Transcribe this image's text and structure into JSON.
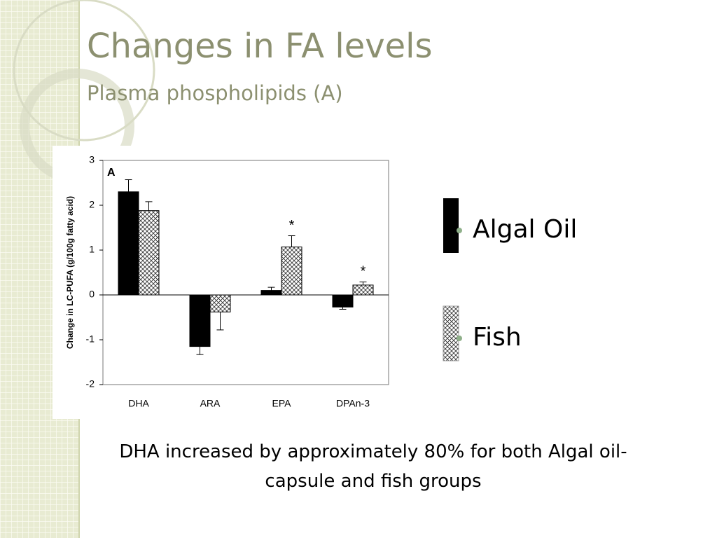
{
  "slide": {
    "title": "Changes in FA levels",
    "subtitle": "Plasma phospholipids (A)",
    "caption": "DHA increased by approximately 80% for both Algal oil-capsule and fish groups"
  },
  "chart_data": {
    "type": "bar",
    "panel_label": "A",
    "y_label": "Change in LC-PUFA (g/100g fatty acid)",
    "categories": [
      "DHA",
      "ARA",
      "EPA",
      "DPAn-3"
    ],
    "series": [
      {
        "name": "Algal Oil",
        "color": "#000000",
        "values": [
          2.3,
          -1.15,
          0.1,
          -0.27
        ],
        "errors": [
          0.27,
          0.18,
          0.07,
          0.05
        ]
      },
      {
        "name": "Fish",
        "color": "#000000",
        "pattern": "crosshatch",
        "values": [
          1.88,
          -0.38,
          1.07,
          0.22
        ],
        "errors": [
          0.2,
          0.4,
          0.25,
          0.07
        ],
        "significance": [
          null,
          null,
          "*",
          "*"
        ]
      }
    ],
    "ylim": [
      -2,
      3
    ],
    "yticks": [
      -2,
      -1,
      0,
      1,
      2,
      3
    ],
    "grid": false
  }
}
